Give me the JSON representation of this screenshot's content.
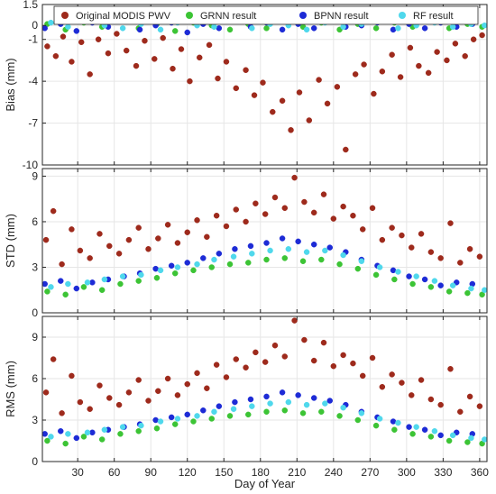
{
  "chart_data": {
    "type": "scatter",
    "x_label": "Day of Year",
    "x_ticks": [
      30,
      60,
      90,
      120,
      150,
      180,
      210,
      240,
      270,
      300,
      330,
      360
    ],
    "x_range": [
      1,
      366
    ],
    "legend": {
      "position": "top",
      "entries": [
        {
          "label": "Original MODIS PWV",
          "color": "#9e2a1c"
        },
        {
          "label": "GRNN result",
          "color": "#3cc435"
        },
        {
          "label": "BPNN result",
          "color": "#1d2bd6"
        },
        {
          "label": "RF result",
          "color": "#4fd8ec"
        }
      ]
    },
    "grid": true,
    "panels": [
      {
        "ylabel": "Bias (mm)",
        "ylim": [
          -10,
          1.5
        ],
        "yticks": [
          1.5,
          0,
          -1,
          -4,
          -7,
          -10
        ],
        "series": [
          {
            "name": "Original MODIS PWV",
            "color": "#9e2a1c",
            "x": [
              5,
              12,
              18,
              25,
              33,
              40,
              47,
              55,
              62,
              70,
              78,
              85,
              93,
              100,
              108,
              115,
              122,
              130,
              138,
              145,
              152,
              160,
              168,
              175,
              182,
              190,
              198,
              205,
              212,
              220,
              228,
              235,
              243,
              250,
              258,
              265,
              273,
              280,
              288,
              295,
              303,
              310,
              318,
              325,
              333,
              340,
              348,
              355,
              362
            ],
            "y": [
              -1.5,
              -2.2,
              -0.8,
              -2.6,
              -1.2,
              -3.5,
              -1.0,
              -2.0,
              -0.6,
              -1.8,
              -2.9,
              -1.1,
              -2.4,
              -0.9,
              -3.1,
              -1.7,
              -4.0,
              -2.3,
              -1.4,
              -3.8,
              -2.6,
              -4.5,
              -3.2,
              -5.0,
              -4.1,
              -6.2,
              -5.4,
              -7.5,
              -4.8,
              -6.8,
              -3.9,
              -5.6,
              -4.4,
              -8.9,
              -3.5,
              -2.8,
              -4.9,
              -3.3,
              -2.1,
              -3.7,
              -1.6,
              -2.9,
              -3.4,
              -1.9,
              -2.5,
              -1.3,
              -2.2,
              -1.0,
              -0.7
            ]
          },
          {
            "name": "GRNN result",
            "color": "#3cc435",
            "x": [
              5,
              20,
              35,
              50,
              65,
              80,
              95,
              110,
              125,
              140,
              155,
              170,
              185,
              200,
              215,
              230,
              245,
              260,
              275,
              290,
              305,
              320,
              335,
              350,
              362
            ],
            "y": [
              0.1,
              -0.3,
              0.2,
              -0.1,
              0.3,
              -0.2,
              0.1,
              -0.4,
              0.2,
              0.0,
              -0.3,
              0.1,
              -0.2,
              0.3,
              -0.1,
              0.2,
              -0.3,
              0.1,
              -0.2,
              0.2,
              -0.1,
              0.3,
              -0.2,
              0.1,
              -0.1
            ]
          },
          {
            "name": "BPNN result",
            "color": "#1d2bd6",
            "x": [
              3,
              16,
              29,
              42,
              55,
              68,
              81,
              94,
              107,
              120,
              133,
              146,
              159,
              172,
              185,
              198,
              211,
              224,
              237,
              250,
              263,
              276,
              289,
              302,
              315,
              328,
              341,
              354
            ],
            "y": [
              -0.2,
              0.1,
              -0.4,
              0.2,
              -0.1,
              0.3,
              -0.3,
              0.0,
              0.2,
              -0.5,
              0.1,
              -0.2,
              0.3,
              -0.1,
              0.2,
              -0.3,
              0.1,
              -0.2,
              0.3,
              -0.1,
              0.0,
              0.2,
              -0.3,
              0.1,
              -0.2,
              0.2,
              -0.1,
              0.1
            ]
          },
          {
            "name": "RF result",
            "color": "#4fd8ec",
            "x": [
              8,
              22,
              38,
              52,
              67,
              82,
              98,
              112,
              128,
              142,
              158,
              173,
              188,
              203,
              218,
              233,
              248,
              263,
              278,
              293,
              308,
              323,
              338,
              353,
              364
            ],
            "y": [
              0.2,
              -0.1,
              0.3,
              0.0,
              -0.2,
              0.1,
              -0.3,
              0.2,
              0.0,
              -0.1,
              0.3,
              -0.2,
              0.1,
              0.0,
              -0.3,
              0.2,
              -0.1,
              0.1,
              0.3,
              -0.2,
              0.0,
              0.2,
              -0.1,
              0.1,
              0.0
            ]
          }
        ]
      },
      {
        "ylabel": "STD (mm)",
        "ylim": [
          0,
          9.5
        ],
        "yticks": [
          0,
          3,
          6,
          9
        ],
        "series": [
          {
            "name": "Original MODIS PWV",
            "color": "#9e2a1c",
            "x": [
              4,
              10,
              17,
              25,
              32,
              40,
              48,
              56,
              64,
              72,
              80,
              88,
              96,
              104,
              112,
              120,
              128,
              136,
              144,
              152,
              160,
              168,
              176,
              184,
              192,
              200,
              208,
              216,
              224,
              232,
              240,
              248,
              256,
              264,
              272,
              280,
              288,
              296,
              304,
              312,
              320,
              328,
              336,
              344,
              352,
              360
            ],
            "y": [
              4.8,
              6.7,
              3.2,
              5.5,
              4.1,
              3.6,
              5.2,
              4.4,
              3.9,
              4.8,
              5.6,
              4.2,
              4.9,
              5.8,
              4.6,
              5.3,
              6.1,
              5.0,
              6.4,
              5.7,
              6.8,
              6.0,
              7.2,
              6.5,
              7.6,
              6.9,
              8.9,
              7.3,
              6.6,
              7.8,
              6.2,
              7.0,
              6.4,
              5.5,
              6.9,
              4.8,
              5.6,
              5.1,
              4.3,
              5.2,
              4.0,
              3.6,
              5.9,
              3.3,
              4.2,
              3.7
            ]
          },
          {
            "name": "GRNN result",
            "color": "#3cc435",
            "x": [
              5,
              20,
              35,
              50,
              65,
              80,
              95,
              110,
              125,
              140,
              155,
              170,
              185,
              200,
              215,
              230,
              245,
              260,
              275,
              290,
              305,
              320,
              335,
              350,
              362
            ],
            "y": [
              1.4,
              1.2,
              1.7,
              1.5,
              1.9,
              2.1,
              2.3,
              2.6,
              2.8,
              3.0,
              3.2,
              3.3,
              3.5,
              3.6,
              3.4,
              3.5,
              3.2,
              2.9,
              2.5,
              2.2,
              1.9,
              1.7,
              1.4,
              1.3,
              1.2
            ]
          },
          {
            "name": "BPNN result",
            "color": "#1d2bd6",
            "x": [
              3,
              16,
              29,
              42,
              55,
              68,
              81,
              94,
              107,
              120,
              133,
              146,
              159,
              172,
              185,
              198,
              211,
              224,
              237,
              250,
              263,
              276,
              289,
              302,
              315,
              328,
              341,
              354
            ],
            "y": [
              1.9,
              2.1,
              1.6,
              2.0,
              2.2,
              2.4,
              2.6,
              2.9,
              3.1,
              3.3,
              3.6,
              3.9,
              4.2,
              4.4,
              4.6,
              4.9,
              4.7,
              4.5,
              4.3,
              4.0,
              3.5,
              3.1,
              2.8,
              2.4,
              2.2,
              1.8,
              2.0,
              1.9
            ]
          },
          {
            "name": "RF result",
            "color": "#4fd8ec",
            "x": [
              8,
              22,
              38,
              52,
              67,
              82,
              98,
              112,
              128,
              142,
              158,
              173,
              188,
              203,
              218,
              233,
              248,
              263,
              278,
              293,
              308,
              323,
              338,
              353,
              364
            ],
            "y": [
              1.7,
              1.9,
              2.0,
              2.2,
              2.4,
              2.5,
              2.8,
              3.0,
              3.2,
              3.5,
              3.7,
              3.9,
              4.1,
              4.2,
              4.0,
              4.1,
              3.8,
              3.4,
              3.0,
              2.7,
              2.4,
              2.1,
              1.8,
              1.6,
              1.5
            ]
          }
        ]
      },
      {
        "ylabel": "RMS (mm)",
        "ylim": [
          0,
          10.5
        ],
        "yticks": [
          0,
          3,
          6,
          9
        ],
        "series": [
          {
            "name": "Original MODIS PWV",
            "color": "#9e2a1c",
            "x": [
              4,
              10,
              17,
              25,
              32,
              40,
              48,
              56,
              64,
              72,
              80,
              88,
              96,
              104,
              112,
              120,
              128,
              136,
              144,
              152,
              160,
              168,
              176,
              184,
              192,
              200,
              208,
              216,
              224,
              232,
              240,
              248,
              256,
              264,
              272,
              280,
              288,
              296,
              304,
              312,
              320,
              328,
              336,
              344,
              352,
              360
            ],
            "y": [
              5.0,
              7.4,
              3.5,
              6.2,
              4.3,
              3.8,
              5.5,
              4.6,
              4.1,
              5.0,
              5.9,
              4.4,
              5.1,
              6.0,
              4.8,
              5.6,
              6.4,
              5.3,
              7.0,
              6.1,
              7.4,
              6.8,
              7.9,
              7.2,
              8.4,
              7.6,
              10.2,
              8.8,
              7.3,
              8.6,
              6.9,
              7.7,
              7.1,
              6.2,
              7.5,
              5.4,
              6.3,
              5.7,
              4.8,
              5.9,
              4.5,
              4.1,
              6.7,
              3.6,
              4.7,
              4.0
            ]
          },
          {
            "name": "GRNN result",
            "color": "#3cc435",
            "x": [
              5,
              20,
              35,
              50,
              65,
              80,
              95,
              110,
              125,
              140,
              155,
              170,
              185,
              200,
              215,
              230,
              245,
              260,
              275,
              290,
              305,
              320,
              335,
              350,
              362
            ],
            "y": [
              1.5,
              1.3,
              1.8,
              1.6,
              2.0,
              2.2,
              2.4,
              2.7,
              2.9,
              3.1,
              3.3,
              3.4,
              3.6,
              3.7,
              3.5,
              3.6,
              3.3,
              3.0,
              2.6,
              2.3,
              2.0,
              1.8,
              1.5,
              1.4,
              1.3
            ]
          },
          {
            "name": "BPNN result",
            "color": "#1d2bd6",
            "x": [
              3,
              16,
              29,
              42,
              55,
              68,
              81,
              94,
              107,
              120,
              133,
              146,
              159,
              172,
              185,
              198,
              211,
              224,
              237,
              250,
              263,
              276,
              289,
              302,
              315,
              328,
              341,
              354
            ],
            "y": [
              2.0,
              2.2,
              1.7,
              2.1,
              2.3,
              2.5,
              2.7,
              3.0,
              3.2,
              3.4,
              3.7,
              4.0,
              4.3,
              4.5,
              4.7,
              5.0,
              4.8,
              4.6,
              4.4,
              4.1,
              3.6,
              3.2,
              2.9,
              2.5,
              2.3,
              1.9,
              2.1,
              2.0
            ]
          },
          {
            "name": "RF result",
            "color": "#4fd8ec",
            "x": [
              8,
              22,
              38,
              52,
              67,
              82,
              98,
              112,
              128,
              142,
              158,
              173,
              188,
              203,
              218,
              233,
              248,
              263,
              278,
              293,
              308,
              323,
              338,
              353,
              364
            ],
            "y": [
              1.8,
              2.0,
              2.1,
              2.3,
              2.5,
              2.6,
              2.9,
              3.1,
              3.3,
              3.6,
              3.8,
              4.0,
              4.2,
              4.3,
              4.1,
              4.2,
              3.9,
              3.5,
              3.1,
              2.8,
              2.5,
              2.2,
              1.9,
              1.7,
              1.6
            ]
          }
        ]
      }
    ]
  }
}
